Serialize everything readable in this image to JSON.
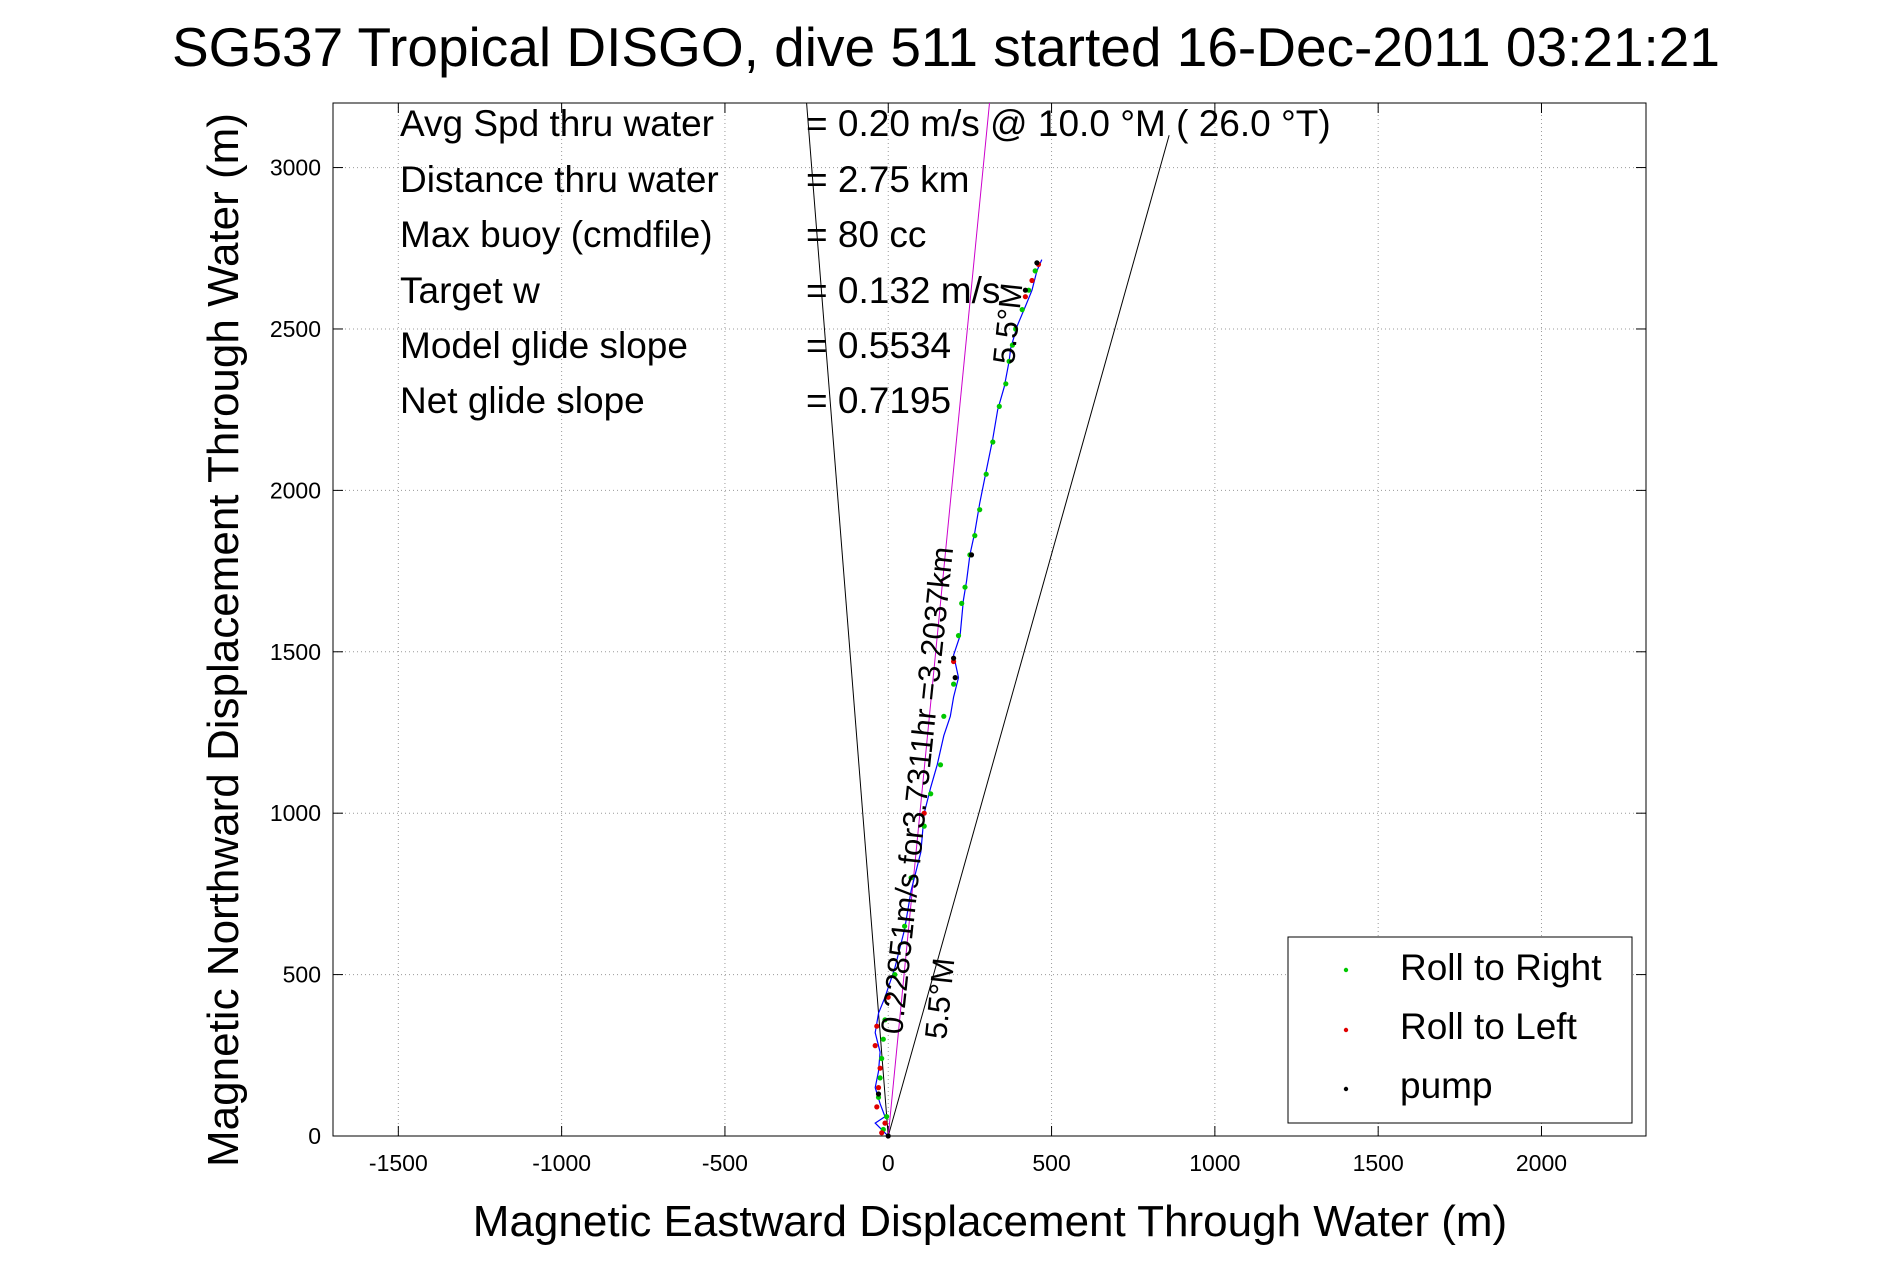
{
  "chart_data": {
    "type": "line",
    "title": "SG537 Tropical DISGO, dive 511 started 16-Dec-2011 03:21:21",
    "xlabel": "Magnetic Eastward Displacement Through Water (m)",
    "ylabel": "Magnetic Northward Displacement Through Water (m)",
    "xlim": [
      -1700,
      2320
    ],
    "ylim": [
      0,
      3200
    ],
    "xticks": [
      -1500,
      -1000,
      -500,
      0,
      500,
      1000,
      1500,
      2000
    ],
    "yticks": [
      0,
      500,
      1000,
      1500,
      2000,
      2500,
      3000
    ],
    "grid": true,
    "legend_position": "bottom-right",
    "info_lines": [
      {
        "label": "Avg Spd thru water",
        "value": "=  0.20 m/s @  10.0 °M ( 26.0 °T)"
      },
      {
        "label": "Distance thru water",
        "value": "=  2.75 km"
      },
      {
        "label": "Max buoy (cmdfile)",
        "value": "= 80 cc"
      },
      {
        "label": "Target w",
        "value": "= 0.132 m/s"
      },
      {
        "label": "Model glide slope",
        "value": "= 0.5534"
      },
      {
        "label": "Net glide slope",
        "value": "= 0.7195"
      }
    ],
    "annotations": {
      "current_label": "0.22851m/s for3.7311hr =3.2037km",
      "cone_lower_label": "5.5°M",
      "cone_upper_label": "5.5°M"
    },
    "guide_lines": {
      "cone_left": [
        [
          0,
          0
        ],
        [
          -250,
          3200
        ]
      ],
      "cone_right": [
        [
          0,
          0
        ],
        [
          860,
          3100
        ]
      ],
      "current": [
        [
          0,
          0
        ],
        [
          310,
          3200
        ]
      ]
    },
    "series": [
      {
        "name": "Roll to Right",
        "color": "#00c800",
        "marker": "dot",
        "points": [
          [
            -15,
            20
          ],
          [
            -5,
            60
          ],
          [
            -30,
            120
          ],
          [
            -25,
            180
          ],
          [
            -20,
            240
          ],
          [
            -15,
            300
          ],
          [
            -10,
            360
          ],
          [
            20,
            500
          ],
          [
            50,
            650
          ],
          [
            70,
            800
          ],
          [
            110,
            960
          ],
          [
            130,
            1060
          ],
          [
            160,
            1150
          ],
          [
            170,
            1300
          ],
          [
            200,
            1400
          ],
          [
            215,
            1550
          ],
          [
            225,
            1650
          ],
          [
            235,
            1700
          ],
          [
            250,
            1800
          ],
          [
            265,
            1860
          ],
          [
            280,
            1940
          ],
          [
            300,
            2050
          ],
          [
            320,
            2150
          ],
          [
            340,
            2260
          ],
          [
            360,
            2330
          ],
          [
            370,
            2400
          ],
          [
            380,
            2450
          ],
          [
            390,
            2500
          ],
          [
            410,
            2560
          ],
          [
            430,
            2620
          ],
          [
            450,
            2680
          ]
        ]
      },
      {
        "name": "Roll to Left",
        "color": "#e00000",
        "marker": "dot",
        "points": [
          [
            -20,
            10
          ],
          [
            -10,
            40
          ],
          [
            -35,
            90
          ],
          [
            -30,
            150
          ],
          [
            -25,
            210
          ],
          [
            -40,
            280
          ],
          [
            -35,
            340
          ],
          [
            0,
            430
          ],
          [
            110,
            1000
          ],
          [
            200,
            1470
          ],
          [
            420,
            2600
          ],
          [
            440,
            2650
          ],
          [
            460,
            2700
          ]
        ]
      },
      {
        "name": "pump",
        "color": "#000000",
        "marker": "dot",
        "points": [
          [
            0,
            0
          ],
          [
            -30,
            130
          ],
          [
            200,
            1480
          ],
          [
            205,
            1420
          ],
          [
            255,
            1800
          ],
          [
            420,
            2620
          ],
          [
            455,
            2705
          ]
        ]
      }
    ],
    "track": [
      [
        0,
        0
      ],
      [
        -15,
        15
      ],
      [
        -40,
        40
      ],
      [
        -10,
        60
      ],
      [
        -25,
        100
      ],
      [
        -40,
        150
      ],
      [
        -30,
        200
      ],
      [
        -25,
        260
      ],
      [
        -40,
        320
      ],
      [
        -30,
        380
      ],
      [
        -10,
        430
      ],
      [
        20,
        520
      ],
      [
        50,
        640
      ],
      [
        70,
        760
      ],
      [
        100,
        880
      ],
      [
        110,
        1000
      ],
      [
        130,
        1080
      ],
      [
        150,
        1150
      ],
      [
        170,
        1240
      ],
      [
        190,
        1300
      ],
      [
        200,
        1360
      ],
      [
        215,
        1420
      ],
      [
        200,
        1490
      ],
      [
        220,
        1550
      ],
      [
        230,
        1660
      ],
      [
        240,
        1720
      ],
      [
        250,
        1800
      ],
      [
        265,
        1870
      ],
      [
        280,
        1960
      ],
      [
        300,
        2060
      ],
      [
        320,
        2160
      ],
      [
        335,
        2250
      ],
      [
        355,
        2320
      ],
      [
        370,
        2400
      ],
      [
        375,
        2440
      ],
      [
        395,
        2510
      ],
      [
        420,
        2570
      ],
      [
        440,
        2620
      ],
      [
        455,
        2680
      ],
      [
        470,
        2715
      ]
    ],
    "track_color": "#0000ff",
    "current_line_color": "#cc00cc"
  }
}
